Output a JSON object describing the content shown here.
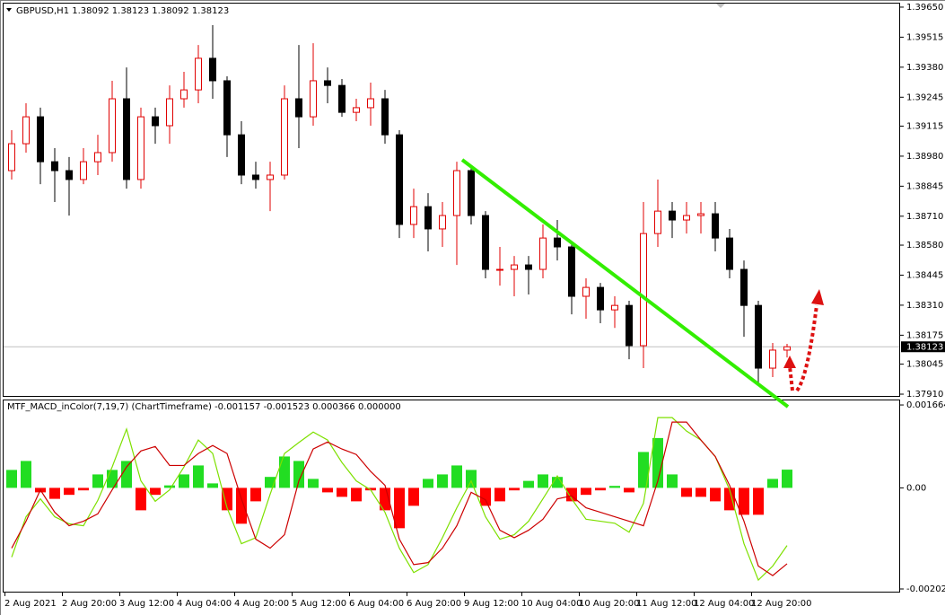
{
  "chart_data": [
    {
      "type": "candlestick",
      "title": "GBPUSD,H1  1.38092 1.38123 1.38092 1.38123",
      "categories": [
        "2 Aug 2021",
        null,
        null,
        null,
        "2 Aug 20:00",
        null,
        null,
        null,
        "3 Aug 12:00",
        null,
        null,
        null,
        "4 Aug 04:00",
        null,
        null,
        null,
        "4 Aug 20:00",
        null,
        null,
        null,
        "5 Aug 12:00",
        null,
        null,
        null,
        "6 Aug 04:00",
        null,
        null,
        null,
        "6 Aug 20:00",
        null,
        null,
        null,
        "9 Aug 12:00",
        null,
        null,
        null,
        "10 Aug 04:00",
        null,
        null,
        null,
        "10 Aug 20:00",
        null,
        null,
        null,
        "11 Aug 12:00",
        null,
        null,
        null,
        "12 Aug 04:00",
        null,
        null,
        null,
        "12 Aug 20:00",
        null,
        null
      ],
      "open": [
        1.38915,
        1.39036,
        1.39157,
        1.38955,
        1.38915,
        1.38875,
        1.38955,
        1.38996,
        1.39238,
        1.38875,
        1.39157,
        1.39117,
        1.39238,
        1.39278,
        1.3942,
        1.39319,
        1.39076,
        1.38895,
        1.38875,
        1.38895,
        1.39238,
        1.39157,
        1.39319,
        1.39298,
        1.39177,
        1.39198,
        1.39238,
        1.39076,
        1.38673,
        1.38753,
        1.38653,
        1.38713,
        1.38915,
        1.38713,
        1.38471,
        1.38471,
        1.38491,
        1.38471,
        1.38612,
        1.38572,
        1.3835,
        1.3839,
        1.38289,
        1.38309,
        1.38128,
        1.38632,
        1.38733,
        1.38693,
        1.38713,
        1.38721,
        1.38612,
        1.38471,
        1.38309,
        1.38027,
        1.38108
      ],
      "high": [
        1.39097,
        1.39218,
        1.39198,
        1.39016,
        1.38976,
        1.39016,
        1.39076,
        1.39319,
        1.39379,
        1.39198,
        1.39198,
        1.39298,
        1.39359,
        1.3948,
        1.39569,
        1.39339,
        1.39137,
        1.38955,
        1.38955,
        1.39298,
        1.3948,
        1.39488,
        1.39379,
        1.39327,
        1.39238,
        1.39311,
        1.39278,
        1.39097,
        1.38834,
        1.38814,
        1.38774,
        1.38955,
        1.38935,
        1.38733,
        1.38572,
        1.38531,
        1.38531,
        1.38673,
        1.38693,
        1.38592,
        1.38431,
        1.3841,
        1.3835,
        1.3833,
        1.38774,
        1.38875,
        1.38774,
        1.38774,
        1.38774,
        1.38774,
        1.38653,
        1.38511,
        1.3833,
        1.3814,
        1.38136
      ],
      "low": [
        1.38875,
        1.38996,
        1.38854,
        1.38774,
        1.38713,
        1.38854,
        1.38895,
        1.38955,
        1.38834,
        1.38834,
        1.39036,
        1.39036,
        1.39198,
        1.39218,
        1.39238,
        1.38976,
        1.38854,
        1.38834,
        1.38733,
        1.38875,
        1.39016,
        1.39117,
        1.39218,
        1.39157,
        1.39137,
        1.39117,
        1.39036,
        1.38612,
        1.38612,
        1.38552,
        1.38572,
        1.38491,
        1.38673,
        1.38431,
        1.38398,
        1.3835,
        1.38358,
        1.38431,
        1.38511,
        1.38269,
        1.38249,
        1.38229,
        1.38208,
        1.38067,
        1.38027,
        1.38572,
        1.38612,
        1.38632,
        1.38632,
        1.38552,
        1.38431,
        1.38168,
        1.37954,
        1.37987,
        1.38075
      ],
      "close": [
        1.39036,
        1.39157,
        1.38955,
        1.38915,
        1.38875,
        1.38955,
        1.38996,
        1.39238,
        1.38875,
        1.39157,
        1.39117,
        1.39238,
        1.39278,
        1.3942,
        1.39319,
        1.39076,
        1.38895,
        1.38875,
        1.38895,
        1.39238,
        1.39157,
        1.39319,
        1.39298,
        1.39177,
        1.39198,
        1.39238,
        1.39076,
        1.38673,
        1.38753,
        1.38653,
        1.38713,
        1.38915,
        1.38713,
        1.38471,
        1.38471,
        1.38491,
        1.38471,
        1.38612,
        1.38572,
        1.3835,
        1.3839,
        1.38289,
        1.38309,
        1.38128,
        1.38632,
        1.38733,
        1.38693,
        1.38713,
        1.38721,
        1.38612,
        1.38471,
        1.38309,
        1.38027,
        1.38108,
        1.38123
      ],
      "up_color": "#e00000",
      "down_color": "#000000",
      "current_price": 1.38123,
      "ylim": [
        1.37902,
        1.3967
      ],
      "yticks": [
        {
          "value": 1.3965,
          "label": "1.39650"
        },
        1.39515,
        {
          "value": 1.3938,
          "label": "1.39380"
        },
        1.39245,
        1.39115,
        {
          "value": 1.3898,
          "label": "1.38980"
        },
        1.38845,
        {
          "value": 1.3871,
          "label": "1.38710"
        },
        {
          "value": 1.3858,
          "label": "1.38580"
        },
        1.38445,
        {
          "value": 1.3831,
          "label": "1.38310"
        },
        1.38175,
        1.38045,
        {
          "value": 1.3791,
          "label": "1.37910"
        }
      ],
      "grid": false
    },
    {
      "type": "macd",
      "title": "MTF_MACD_inColor(7,19,7) (ChartTimeframe) -0.001157 -0.001523 0.000366 0.000000",
      "series": [
        {
          "type": "bar",
          "color": "#22dd22",
          "down_color": "#ff0000",
          "values": [
            0.00036,
            0.00054,
            -9e-05,
            -0.00022,
            -0.00014,
            -5e-05,
            0.00027,
            0.00036,
            0.00054,
            -0.00045,
            -0.00014,
            5e-05,
            0.00027,
            0.00045,
            9e-05,
            -0.00045,
            -0.00072,
            -0.00027,
            0.00022,
            0.00063,
            0.00054,
            0.00018,
            -9e-05,
            -0.00018,
            -0.00027,
            -5e-05,
            -0.00045,
            -0.00081,
            -0.00036,
            0.00018,
            0.00027,
            0.00045,
            0.00036,
            -0.00036,
            -0.00027,
            -5e-05,
            0.00014,
            0.00027,
            0.00022,
            -0.00027,
            -0.00014,
            -5e-05,
            4e-05,
            -9e-05,
            0.00072,
            0.001,
            0.00027,
            -0.00018,
            -0.00018,
            -0.00027,
            -0.00045,
            -0.00054,
            -0.00054,
            0.00018,
            0.000366
          ]
        },
        {
          "type": "line",
          "color": "#7ee000",
          "values": [
            -0.00139,
            -0.00058,
            -0.00022,
            -0.00058,
            -0.00072,
            -0.00076,
            -0.00025,
            0.00042,
            0.00118,
            0.00014,
            -0.00027,
            -4e-05,
            0.00042,
            0.00096,
            0.00069,
            -0.0004,
            -0.00112,
            -0.001,
            -0.00013,
            0.00069,
            0.00091,
            0.00112,
            0.00096,
            0.00051,
            0.00014,
            -4e-05,
            -0.00049,
            -0.00121,
            -0.0017,
            -0.00154,
            -0.001,
            -0.0004,
            0.00014,
            -0.00058,
            -0.00103,
            -0.00094,
            -0.00067,
            -0.00022,
            0.00024,
            -0.00022,
            -0.00063,
            -0.00067,
            -0.00071,
            -0.00089,
            -0.00031,
            0.00141,
            0.00141,
            0.00114,
            0.00096,
            0.00063,
            -4e-05,
            -0.00112,
            -0.00185,
            -0.00157,
            -0.001157
          ]
        },
        {
          "type": "line",
          "color": "#cc0000",
          "values": [
            -0.00121,
            -0.00067,
            -4e-05,
            -0.00049,
            -0.00076,
            -0.00067,
            -0.00052,
            -4e-05,
            0.00042,
            0.00074,
            0.00083,
            0.00045,
            0.00045,
            0.00069,
            0.00085,
            0.00069,
            -0.00022,
            -0.00103,
            -0.00121,
            -0.00094,
            0.00014,
            0.00078,
            0.00092,
            0.00078,
            0.00067,
            0.00033,
            5e-05,
            -0.00103,
            -0.00154,
            -0.0015,
            -0.00121,
            -0.00076,
            -9e-05,
            -0.00024,
            -0.00085,
            -0.001,
            -0.00085,
            -0.00063,
            -0.00022,
            -0.00016,
            -0.0004,
            -0.00049,
            -0.00058,
            -0.00067,
            -0.00076,
            0.00014,
            0.00132,
            0.00132,
            0.00096,
            0.00063,
            5e-05,
            -0.00067,
            -0.00157,
            -0.00176,
            -0.001523
          ]
        }
      ],
      "ylim": [
        -0.002083,
        0.001773
      ],
      "yticks": [
        0.001664,
        {
          "value": 0,
          "label": "0.00"
        },
        -0.002029
      ],
      "grid": false
    }
  ]
}
